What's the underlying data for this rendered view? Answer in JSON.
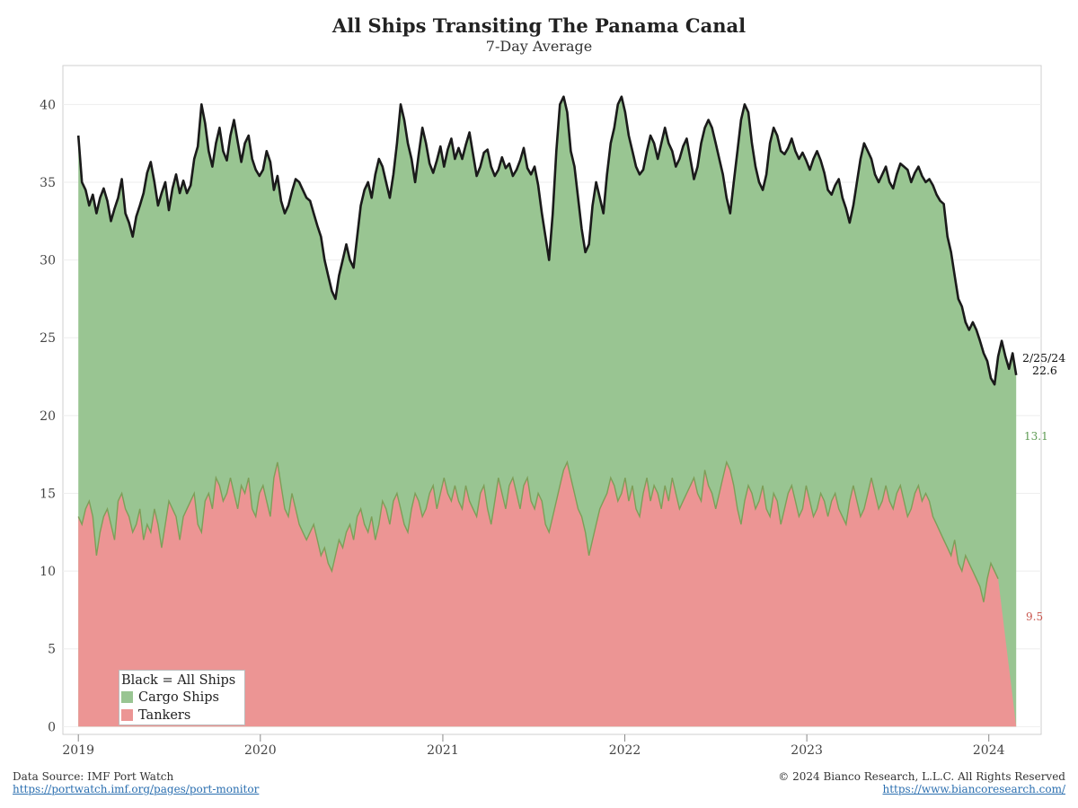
{
  "header": {
    "title": "All Ships Transiting The Panama Canal",
    "subtitle": "7-Day Average"
  },
  "legend": {
    "all_ships": "Black = All Ships",
    "cargo": "Cargo Ships",
    "tankers": "Tankers"
  },
  "end_labels": {
    "date": "2/25/24",
    "all_ships_value": "22.6",
    "cargo_value": "13.1",
    "tankers_value": "9.5"
  },
  "footer": {
    "source_label": "Data Source: IMF Port Watch",
    "source_link": "https://portwatch.imf.org/pages/port-monitor",
    "copyright": "© 2024 Bianco Research, L.L.C. All Rights Reserved",
    "site_link": "https://www.biancoresearch.com/"
  },
  "colors": {
    "cargo_fill": "#99c592",
    "tanker_fill": "#ec9594",
    "all_ships_line": "#1a1a1a",
    "tanker_line": "#7e9e58",
    "cargo_label": "#5c9a52",
    "tanker_label": "#c9574f"
  },
  "chart_data": {
    "type": "area",
    "stacked": true,
    "x_start": "2019-01-01",
    "x_end": "2024-02-25",
    "xlim": [
      "2018-12-01",
      "2024-04-15"
    ],
    "ylim": [
      -0.5,
      42.5
    ],
    "yticks": [
      0,
      5,
      10,
      15,
      20,
      25,
      30,
      35,
      40
    ],
    "xticks": [
      "2019",
      "2020",
      "2021",
      "2022",
      "2023",
      "2024"
    ],
    "grid": true,
    "legend_position": "bottom-left",
    "series": [
      {
        "name": "All Ships",
        "note": "weekly-sampled approximate 7-day average (total = cargo + tankers)",
        "values": [
          38.0,
          35.0,
          34.5,
          33.5,
          34.2,
          33.0,
          34.0,
          34.6,
          33.8,
          32.5,
          33.3,
          34.0,
          35.2,
          33.0,
          32.4,
          31.5,
          32.8,
          33.5,
          34.3,
          35.6,
          36.3,
          35.0,
          33.5,
          34.3,
          35.0,
          33.2,
          34.6,
          35.5,
          34.3,
          35.1,
          34.3,
          34.8,
          36.5,
          37.3,
          40.0,
          38.8,
          37.0,
          36.0,
          37.5,
          38.5,
          37.0,
          36.4,
          38.0,
          39.0,
          37.6,
          36.3,
          37.5,
          38.0,
          36.5,
          35.8,
          35.4,
          35.8,
          37.0,
          36.3,
          34.5,
          35.4,
          33.8,
          33.0,
          33.5,
          34.4,
          35.2,
          35.0,
          34.5,
          34.0,
          33.8,
          33.0,
          32.2,
          31.5,
          30.0,
          29.0,
          28.0,
          27.5,
          29.0,
          30.0,
          31.0,
          30.0,
          29.5,
          31.5,
          33.5,
          34.5,
          35.0,
          34.0,
          35.5,
          36.5,
          36.0,
          35.0,
          34.0,
          35.5,
          37.5,
          40.0,
          39.0,
          37.5,
          36.5,
          35.0,
          36.8,
          38.5,
          37.5,
          36.2,
          35.6,
          36.4,
          37.3,
          36.0,
          37.1,
          37.8,
          36.5,
          37.2,
          36.5,
          37.4,
          38.2,
          36.8,
          35.4,
          36.0,
          36.9,
          37.1,
          36.0,
          35.4,
          35.8,
          36.6,
          35.9,
          36.2,
          35.4,
          35.8,
          36.4,
          37.2,
          35.9,
          35.5,
          36.0,
          34.8,
          33.0,
          31.5,
          30.0,
          33.0,
          37.0,
          40.0,
          40.5,
          39.5,
          37.0,
          36.0,
          34.0,
          32.0,
          30.5,
          31.0,
          33.5,
          35.0,
          34.0,
          33.0,
          35.5,
          37.5,
          38.5,
          40.0,
          40.5,
          39.5,
          38.0,
          37.0,
          36.0,
          35.5,
          35.8,
          37.0,
          38.0,
          37.5,
          36.5,
          37.5,
          38.5,
          37.5,
          37.0,
          36.0,
          36.5,
          37.3,
          37.8,
          36.5,
          35.2,
          36.0,
          37.5,
          38.5,
          39.0,
          38.5,
          37.5,
          36.5,
          35.5,
          34.0,
          33.0,
          35.0,
          37.0,
          39.0,
          40.0,
          39.5,
          37.5,
          36.0,
          35.0,
          34.5,
          35.5,
          37.5,
          38.5,
          38.0,
          37.0,
          36.8,
          37.2,
          37.8,
          37.0,
          36.5,
          36.9,
          36.4,
          35.8,
          36.5,
          37.0,
          36.4,
          35.6,
          34.5,
          34.2,
          34.8,
          35.2,
          34.0,
          33.3,
          32.4,
          33.5,
          35.0,
          36.5,
          37.5,
          37.0,
          36.5,
          35.5,
          35.0,
          35.5,
          36.0,
          35.0,
          34.6,
          35.5,
          36.2,
          36.0,
          35.8,
          35.0,
          35.6,
          36.0,
          35.4,
          35.0,
          35.2,
          34.8,
          34.2,
          33.8,
          33.6,
          31.5,
          30.5,
          29.0,
          27.5,
          27.0,
          26.0,
          25.5,
          26.0,
          25.5,
          24.8,
          24.0,
          23.5,
          22.4,
          22.0,
          23.8,
          24.8,
          23.8,
          23.0,
          24.0,
          22.6
        ]
      },
      {
        "name": "Cargo Ships",
        "note": "difference between All Ships and Tankers",
        "last_value": 13.1
      },
      {
        "name": "Tankers",
        "note": "weekly-sampled approximate 7-day average",
        "values": [
          13.5,
          13.0,
          14.0,
          14.5,
          13.5,
          11.0,
          12.5,
          13.5,
          14.0,
          13.0,
          12.0,
          14.5,
          15.0,
          14.0,
          13.5,
          12.5,
          13.0,
          14.0,
          12.0,
          13.0,
          12.5,
          14.0,
          13.0,
          11.5,
          13.0,
          14.5,
          14.0,
          13.5,
          12.0,
          13.5,
          14.0,
          14.5,
          15.0,
          13.0,
          12.5,
          14.5,
          15.0,
          14.0,
          16.0,
          15.5,
          14.5,
          15.0,
          16.0,
          15.0,
          14.0,
          15.5,
          15.0,
          16.0,
          14.0,
          13.5,
          15.0,
          15.5,
          14.5,
          13.5,
          16.0,
          17.0,
          15.5,
          14.0,
          13.5,
          15.0,
          14.0,
          13.0,
          12.5,
          12.0,
          12.5,
          13.0,
          12.0,
          11.0,
          11.5,
          10.5,
          10.0,
          11.0,
          12.0,
          11.5,
          12.5,
          13.0,
          12.0,
          13.5,
          14.0,
          13.0,
          12.5,
          13.5,
          12.0,
          13.0,
          14.5,
          14.0,
          13.0,
          14.5,
          15.0,
          14.0,
          13.0,
          12.5,
          14.0,
          15.0,
          14.5,
          13.5,
          14.0,
          15.0,
          15.5,
          14.0,
          15.0,
          16.0,
          15.0,
          14.5,
          15.5,
          14.5,
          14.0,
          15.5,
          14.5,
          14.0,
          13.5,
          15.0,
          15.5,
          14.0,
          13.0,
          14.5,
          16.0,
          15.0,
          14.0,
          15.5,
          16.0,
          15.0,
          14.0,
          15.5,
          16.0,
          14.5,
          14.0,
          15.0,
          14.5,
          13.0,
          12.5,
          13.5,
          14.5,
          15.5,
          16.5,
          17.0,
          16.0,
          15.0,
          14.0,
          13.5,
          12.5,
          11.0,
          12.0,
          13.0,
          14.0,
          14.5,
          15.0,
          16.0,
          15.5,
          14.5,
          15.0,
          16.0,
          14.5,
          15.5,
          14.0,
          13.5,
          15.0,
          16.0,
          14.5,
          15.5,
          15.0,
          14.0,
          15.5,
          14.5,
          16.0,
          15.0,
          14.0,
          14.5,
          15.0,
          15.5,
          16.0,
          15.0,
          14.5,
          16.5,
          15.5,
          15.0,
          14.0,
          15.0,
          16.0,
          17.0,
          16.5,
          15.5,
          14.0,
          13.0,
          14.5,
          15.5,
          15.0,
          14.0,
          14.5,
          15.5,
          14.0,
          13.5,
          15.0,
          14.5,
          13.0,
          14.0,
          15.0,
          15.5,
          14.5,
          13.5,
          14.0,
          15.5,
          14.5,
          13.5,
          14.0,
          15.0,
          14.5,
          13.5,
          14.5,
          15.0,
          14.0,
          13.5,
          13.0,
          14.5,
          15.5,
          14.5,
          13.5,
          14.0,
          15.0,
          16.0,
          15.0,
          14.0,
          14.5,
          15.5,
          14.5,
          14.0,
          15.0,
          15.5,
          14.5,
          13.5,
          14.0,
          15.0,
          15.5,
          14.5,
          15.0,
          14.5,
          13.5,
          13.0,
          12.5,
          12.0,
          11.5,
          11.0,
          12.0,
          10.5,
          10.0,
          11.0,
          10.5,
          10.0,
          9.5,
          9.0,
          8.0,
          9.5,
          10.5,
          10.0,
          9.5
        ]
      }
    ]
  }
}
